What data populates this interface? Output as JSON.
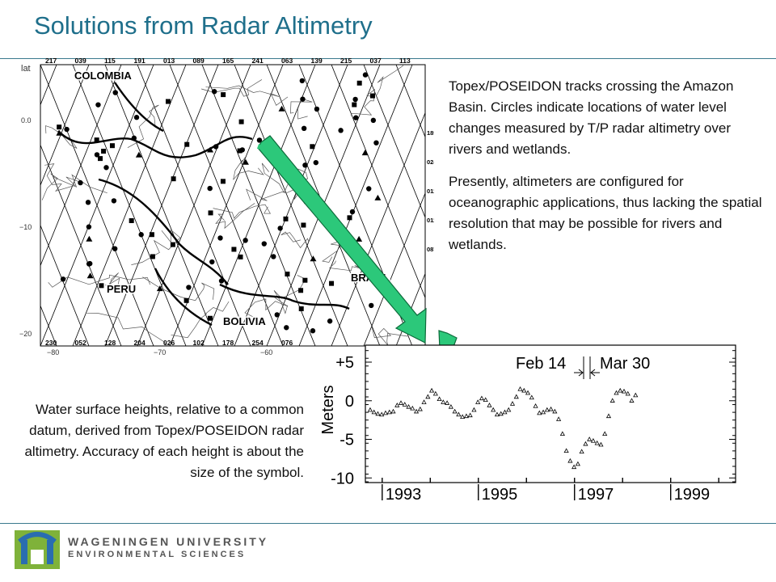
{
  "title": "Solutions from Radar Altimetry",
  "description": {
    "p1": "Topex/POSEIDON tracks crossing the Amazon Basin.  Circles indicate locations of water level changes measured by T/P radar altimetry over rivers and wetlands.",
    "p2": "Presently, altimeters are configured for oceanographic applications, thus lacking the spatial resolution that may be possible for rivers and wetlands."
  },
  "caption": "Water surface heights, relative to a common datum, derived from Topex/POSEIDON radar altimetry. Accuracy of each height is about the size of the symbol.",
  "map": {
    "lat_label": "lat",
    "country_labels": [
      "COLOMBIA",
      "PERU",
      "BRAZIL",
      "BOLIVIA"
    ],
    "top_track_numbers": [
      "217",
      "039",
      "115",
      "191",
      "013",
      "089",
      "165",
      "241",
      "063",
      "139",
      "215",
      "037",
      "113"
    ],
    "bottom_track_numbers": [
      "230",
      "052",
      "128",
      "204",
      "026",
      "102",
      "178",
      "254",
      "076"
    ],
    "right_track_numbers": [
      "189",
      "024",
      "011",
      "011",
      "087"
    ],
    "lat_ticks": [
      "0.0",
      "−10",
      "−20"
    ],
    "lon_ticks": [
      "−80",
      "−70",
      "−60"
    ],
    "accent_color": "#28c070"
  },
  "chart_data": {
    "type": "scatter",
    "ylabel": "Meters",
    "y_tick_labels": [
      "+5",
      "0",
      "-5",
      "-10"
    ],
    "y_ticks": [
      5,
      0,
      -5,
      -10
    ],
    "ylim": [
      -10.6,
      7.2
    ],
    "xlim": [
      1992.6,
      2000.3
    ],
    "x_tick_labels": [
      "1993",
      "1995",
      "1997",
      "1999"
    ],
    "x_ticks": [
      1993,
      1995,
      1997,
      1999
    ],
    "annotations": [
      "Feb 14",
      "Mar 30"
    ],
    "points": [
      [
        1992.7,
        -1.2
      ],
      [
        1992.78,
        -1.5
      ],
      [
        1992.86,
        -1.7
      ],
      [
        1992.94,
        -1.8
      ],
      [
        1993.02,
        -1.6
      ],
      [
        1993.1,
        -1.5
      ],
      [
        1993.18,
        -1.4
      ],
      [
        1993.26,
        -0.6
      ],
      [
        1993.34,
        -0.3
      ],
      [
        1993.42,
        -0.5
      ],
      [
        1993.5,
        -0.8
      ],
      [
        1993.58,
        -1.0
      ],
      [
        1993.66,
        -1.4
      ],
      [
        1993.74,
        -1.1
      ],
      [
        1993.82,
        -0.2
      ],
      [
        1993.9,
        0.5
      ],
      [
        1993.98,
        1.3
      ],
      [
        1994.06,
        0.9
      ],
      [
        1994.14,
        0.2
      ],
      [
        1994.22,
        -0.2
      ],
      [
        1994.3,
        -0.3
      ],
      [
        1994.38,
        -0.8
      ],
      [
        1994.46,
        -1.4
      ],
      [
        1994.54,
        -1.8
      ],
      [
        1994.62,
        -2.1
      ],
      [
        1994.7,
        -2.0
      ],
      [
        1994.78,
        -1.9
      ],
      [
        1994.86,
        -1.2
      ],
      [
        1994.94,
        -0.2
      ],
      [
        1995.02,
        0.3
      ],
      [
        1995.1,
        0.1
      ],
      [
        1995.18,
        -0.6
      ],
      [
        1995.26,
        -1.2
      ],
      [
        1995.34,
        -1.8
      ],
      [
        1995.42,
        -1.7
      ],
      [
        1995.5,
        -1.5
      ],
      [
        1995.58,
        -1.2
      ],
      [
        1995.66,
        -0.4
      ],
      [
        1995.74,
        0.5
      ],
      [
        1995.82,
        1.5
      ],
      [
        1995.9,
        1.3
      ],
      [
        1995.98,
        1.0
      ],
      [
        1996.06,
        0.4
      ],
      [
        1996.14,
        -0.7
      ],
      [
        1996.22,
        -1.6
      ],
      [
        1996.3,
        -1.5
      ],
      [
        1996.38,
        -1.2
      ],
      [
        1996.46,
        -1.1
      ],
      [
        1996.54,
        -1.4
      ],
      [
        1996.62,
        -2.4
      ],
      [
        1996.7,
        -4.3
      ],
      [
        1996.78,
        -6.5
      ],
      [
        1996.86,
        -7.8
      ],
      [
        1996.94,
        -8.6
      ],
      [
        1997.02,
        -8.2
      ],
      [
        1997.1,
        -6.6
      ],
      [
        1997.18,
        -5.6
      ],
      [
        1997.26,
        -5.0
      ],
      [
        1997.34,
        -5.2
      ],
      [
        1997.42,
        -5.5
      ],
      [
        1997.5,
        -5.7
      ],
      [
        1997.58,
        -4.3
      ],
      [
        1997.66,
        -2.0
      ],
      [
        1997.74,
        0.0
      ],
      [
        1997.82,
        1.0
      ],
      [
        1997.9,
        1.3
      ],
      [
        1997.98,
        1.2
      ],
      [
        1998.06,
        0.9
      ],
      [
        1998.14,
        0.0
      ],
      [
        1998.22,
        0.7
      ]
    ]
  },
  "footer": {
    "org": "WAGENINGEN UNIVERSITY",
    "dept": "ENVIRONMENTAL SCIENCES"
  }
}
